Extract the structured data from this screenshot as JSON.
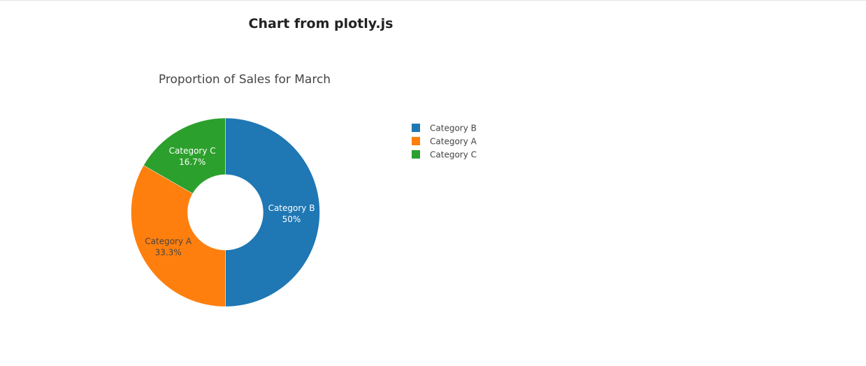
{
  "page": {
    "title": "Chart from plotly.js"
  },
  "chart_data": {
    "type": "pie",
    "hole": 0.4,
    "title": "Proportion of Sales for March",
    "labels": [
      "Category B",
      "Category A",
      "Category C"
    ],
    "values": [
      50,
      33.3,
      16.7
    ],
    "percent_labels": [
      "50%",
      "33.3%",
      "16.7%"
    ],
    "colors": [
      "#1f77b4",
      "#ff7f0e",
      "#2ca02c"
    ],
    "label_colors": [
      "#ffffff",
      "#444444",
      "#ffffff"
    ],
    "legend": {
      "position": "top-right",
      "items": [
        "Category B",
        "Category A",
        "Category C"
      ]
    }
  }
}
